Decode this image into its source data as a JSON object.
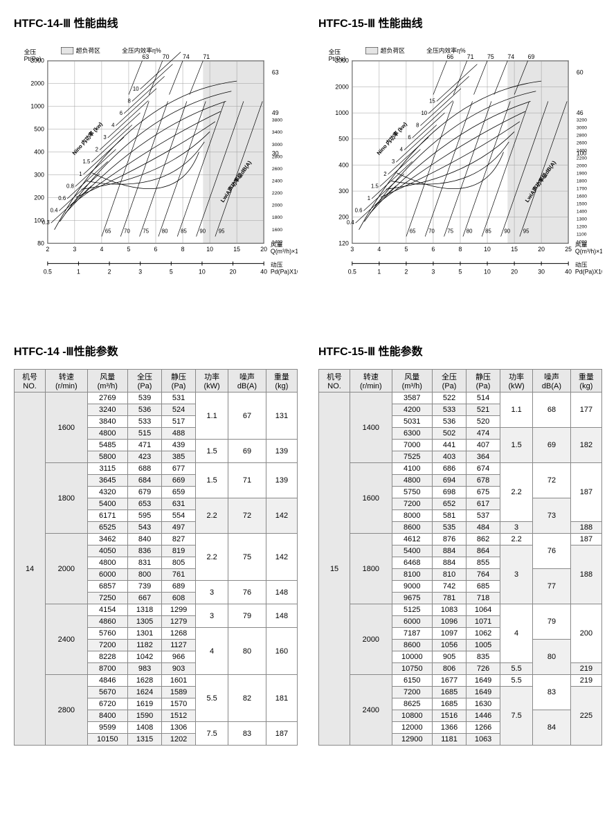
{
  "chart1": {
    "title": "HTFC-14-Ⅲ 性能曲线",
    "y_label_top": "全压",
    "y_label_unit": "Pt(Pa)",
    "overload_label": "超负荷区",
    "eff_label": "全压内效率η%",
    "x_label": "风量",
    "x_unit": "Q(m³/h)×10³",
    "x2_label": "动压",
    "x2_unit": "Pd(Pa)X10",
    "power_label": "Nino 内功率 (kw)",
    "sound_label": "LwiA声功率级dB(A)",
    "y_ticks": [
      80,
      100,
      200,
      300,
      400,
      500,
      1000,
      2000,
      3000
    ],
    "x_ticks": [
      2,
      3,
      4,
      5,
      6,
      8,
      10,
      15,
      20
    ],
    "x2_ticks": [
      0.5,
      1,
      2,
      3,
      5,
      10,
      20,
      40
    ],
    "eff_vals": [
      63,
      70,
      74,
      71
    ],
    "right_eff": [
      63,
      49,
      30
    ],
    "right2_vals": [
      3800,
      3400,
      3000,
      2800,
      2600,
      2400,
      2200,
      2000,
      1800,
      1600,
      1400
    ],
    "power_vals": [
      0.3,
      0.4,
      0.6,
      0.8,
      1,
      1.5,
      2,
      3,
      4,
      6,
      8,
      10
    ],
    "sound_vals": [
      65,
      70,
      75,
      80,
      85,
      90,
      95
    ]
  },
  "chart2": {
    "title": "HTFC-15-Ⅲ 性能曲线",
    "y_label_top": "全压",
    "y_label_unit": "Pt(Pa)",
    "overload_label": "超负荷区",
    "eff_label": "全压内效率η%",
    "x_label": "风量",
    "x_unit": "Q(m³/h)×10³",
    "x2_label": "动压",
    "x2_unit": "Pd(Pa)X10",
    "power_label": "Nino 内功率 (kw)",
    "sound_label": "LwiA声功率级dB(A)",
    "y_ticks": [
      120,
      200,
      300,
      400,
      500,
      1000,
      2000,
      3000
    ],
    "x_ticks": [
      3,
      4,
      5,
      6,
      8,
      10,
      15,
      20,
      25
    ],
    "x2_ticks": [
      0.5,
      1,
      2,
      3,
      5,
      10,
      20,
      30,
      40
    ],
    "eff_vals": [
      66,
      71,
      75,
      74,
      69
    ],
    "right_eff": [
      60,
      46,
      100
    ],
    "right2_vals": [
      3200,
      3000,
      2800,
      2600,
      2400,
      2200,
      2000,
      1900,
      1800,
      1700,
      1600,
      1500,
      1400,
      1300,
      1200,
      1100,
      1000
    ],
    "power_vals": [
      0.4,
      0.6,
      1,
      1.5,
      2,
      3,
      4,
      6,
      8,
      10,
      15
    ],
    "sound_vals": [
      65,
      70,
      75,
      80,
      85,
      90,
      95
    ]
  },
  "table1": {
    "title": "HTFC-14 -Ⅲ性能参数",
    "headers": [
      "机号\nNO.",
      "转速\n(r/min)",
      "风量\n(m³/h)",
      "全压\n(Pa)",
      "静压\n(Pa)",
      "功率\n(kW)",
      "噪声\ndB(A)",
      "重量\n(kg)"
    ],
    "machine_no": "14",
    "groups": [
      {
        "speed": "1600",
        "rows": [
          [
            "2769",
            "539",
            "531"
          ],
          [
            "3240",
            "536",
            "524"
          ],
          [
            "3840",
            "533",
            "517"
          ],
          [
            "4800",
            "515",
            "488"
          ],
          [
            "5485",
            "471",
            "439"
          ],
          [
            "5800",
            "423",
            "385"
          ]
        ],
        "power": [
          "1.1",
          "1.5"
        ],
        "noise": [
          "67",
          "69"
        ],
        "weight": [
          "131",
          "139"
        ],
        "split": 4
      },
      {
        "speed": "1800",
        "rows": [
          [
            "3115",
            "688",
            "677"
          ],
          [
            "3645",
            "684",
            "669"
          ],
          [
            "4320",
            "679",
            "659"
          ],
          [
            "5400",
            "653",
            "631"
          ],
          [
            "6171",
            "595",
            "554"
          ],
          [
            "6525",
            "543",
            "497"
          ]
        ],
        "power": [
          "1.5",
          "2.2"
        ],
        "noise": [
          "71",
          "72"
        ],
        "weight": [
          "139",
          "142"
        ],
        "split": 3
      },
      {
        "speed": "2000",
        "rows": [
          [
            "3462",
            "840",
            "827"
          ],
          [
            "4050",
            "836",
            "819"
          ],
          [
            "4800",
            "831",
            "805"
          ],
          [
            "6000",
            "800",
            "761"
          ],
          [
            "6857",
            "739",
            "689"
          ],
          [
            "7250",
            "667",
            "608"
          ]
        ],
        "power": [
          "2.2",
          "3"
        ],
        "noise": [
          "75",
          "76"
        ],
        "weight": [
          "142",
          "148"
        ],
        "split": 4
      },
      {
        "speed": "2400",
        "rows": [
          [
            "4154",
            "1318",
            "1299"
          ],
          [
            "4860",
            "1305",
            "1279"
          ],
          [
            "5760",
            "1301",
            "1268"
          ],
          [
            "7200",
            "1182",
            "1127"
          ],
          [
            "8228",
            "1042",
            "966"
          ],
          [
            "8700",
            "983",
            "903"
          ]
        ],
        "power": [
          "3",
          "4"
        ],
        "noise": [
          "79",
          "80"
        ],
        "weight": [
          "148",
          "160"
        ],
        "split": 2
      },
      {
        "speed": "2800",
        "rows": [
          [
            "4846",
            "1628",
            "1601"
          ],
          [
            "5670",
            "1624",
            "1589"
          ],
          [
            "6720",
            "1619",
            "1570"
          ],
          [
            "8400",
            "1590",
            "1512"
          ],
          [
            "9599",
            "1408",
            "1306"
          ],
          [
            "10150",
            "1315",
            "1202"
          ]
        ],
        "power": [
          "5.5",
          "7.5"
        ],
        "noise": [
          "82",
          "83"
        ],
        "weight": [
          "181",
          "187"
        ],
        "split": 4
      }
    ]
  },
  "table2": {
    "title": "HTFC-15-Ⅲ 性能参数",
    "headers": [
      "机号\nNO.",
      "转速\n(r/min)",
      "风量\n(m³/h)",
      "全压\n(Pa)",
      "静压\n(Pa)",
      "功率\n(kW)",
      "噪声\ndB(A)",
      "重量\n(kg)"
    ],
    "machine_no": "15",
    "groups": [
      {
        "speed": "1400",
        "rows": [
          [
            "3587",
            "522",
            "514"
          ],
          [
            "4200",
            "533",
            "521"
          ],
          [
            "5031",
            "536",
            "520"
          ],
          [
            "6300",
            "502",
            "474"
          ],
          [
            "7000",
            "441",
            "407"
          ],
          [
            "7525",
            "403",
            "364"
          ]
        ],
        "power": [
          "1.1",
          "1.5"
        ],
        "noise": [
          "68",
          "69"
        ],
        "weight": [
          "177",
          "182"
        ],
        "split": 3
      },
      {
        "speed": "1600",
        "rows": [
          [
            "4100",
            "686",
            "674"
          ],
          [
            "4800",
            "694",
            "678"
          ],
          [
            "5750",
            "698",
            "675"
          ],
          [
            "7200",
            "652",
            "617"
          ],
          [
            "8000",
            "581",
            "537"
          ],
          [
            "8600",
            "535",
            "484"
          ]
        ],
        "power": [
          "2.2",
          "3"
        ],
        "noise": [
          "72",
          "73"
        ],
        "weight": [
          "187",
          "188"
        ],
        "split": 5,
        "nsplit": 3
      },
      {
        "speed": "1800",
        "rows": [
          [
            "4612",
            "876",
            "862"
          ],
          [
            "5400",
            "884",
            "864"
          ],
          [
            "6468",
            "884",
            "855"
          ],
          [
            "8100",
            "810",
            "764"
          ],
          [
            "9000",
            "742",
            "685"
          ],
          [
            "9675",
            "781",
            "718"
          ]
        ],
        "power": [
          "2.2",
          "3"
        ],
        "noise": [
          "76",
          "77"
        ],
        "weight": [
          "187",
          "188"
        ],
        "split": 1,
        "nsplit": 3
      },
      {
        "speed": "2000",
        "rows": [
          [
            "5125",
            "1083",
            "1064"
          ],
          [
            "6000",
            "1096",
            "1071"
          ],
          [
            "7187",
            "1097",
            "1062"
          ],
          [
            "8600",
            "1056",
            "1005"
          ],
          [
            "10000",
            "905",
            "835"
          ],
          [
            "10750",
            "806",
            "726"
          ]
        ],
        "power": [
          "4",
          "5.5"
        ],
        "noise": [
          "79",
          "80"
        ],
        "weight": [
          "200",
          "219"
        ],
        "split": 5,
        "nsplit": 3
      },
      {
        "speed": "2400",
        "rows": [
          [
            "6150",
            "1677",
            "1649"
          ],
          [
            "7200",
            "1685",
            "1649"
          ],
          [
            "8625",
            "1685",
            "1630"
          ],
          [
            "10800",
            "1516",
            "1446"
          ],
          [
            "12000",
            "1366",
            "1266"
          ],
          [
            "12900",
            "1181",
            "1063"
          ]
        ],
        "power": [
          "5.5",
          "7.5"
        ],
        "noise": [
          "83",
          "84"
        ],
        "weight": [
          "219",
          "225"
        ],
        "split": 1,
        "nsplit": 3
      }
    ]
  }
}
